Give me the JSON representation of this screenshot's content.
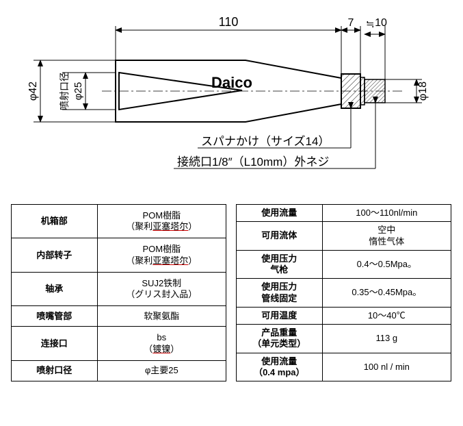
{
  "diagram": {
    "dims": {
      "length_110": "110",
      "gap_7": "7",
      "gap_10": "10",
      "outer_dia_42": "φ42",
      "nozzle_dia_25_label": "喷射口径",
      "nozzle_dia_25_val": "φ25",
      "thread_dia_18": "φ18"
    },
    "logo": "Daico",
    "annot_spanner": "スパナかけ（サイズ14）",
    "annot_thread": "接続口1/8″（L10mm）外ネジ",
    "colors": {
      "line": "#000000",
      "bg": "#ffffff",
      "hatch": "#000000"
    }
  },
  "table_left": {
    "rows": [
      {
        "label": "机箱部",
        "value_html": "POM樹脂\n（聚利<u>亚塞塔尔</u>）"
      },
      {
        "label": "内部转子",
        "value_html": "POM樹脂\n（聚利<u>亚塞塔尔</u>）"
      },
      {
        "label": "轴承",
        "value_html": "SUJ2铁制\n（グリス封入品）"
      },
      {
        "label": "喷嘴管部",
        "value_html": "软聚氨酯"
      },
      {
        "label": "连接口",
        "value_html": "bs\n（<u>镀镍</u>）"
      },
      {
        "label": "喷射口径",
        "value_html": "φ主要25"
      }
    ]
  },
  "table_right": {
    "rows": [
      {
        "label": "使用流量",
        "value": "100～110nl/min"
      },
      {
        "label": "可用流体",
        "value": "空中\n惰性气体"
      },
      {
        "label": "使用压力\n气枪",
        "value": "0.4～0.5Mpa。"
      },
      {
        "label": "使用压力\n管线固定",
        "value": "0.35～0.45Mpa。"
      },
      {
        "label": "可用温度",
        "value": "10～40℃"
      },
      {
        "label": "产品重量\n（单元类型）",
        "value": "113 g"
      },
      {
        "label": "使用流量\n（0.4 mpa）",
        "value": "100 nl / min"
      }
    ]
  }
}
